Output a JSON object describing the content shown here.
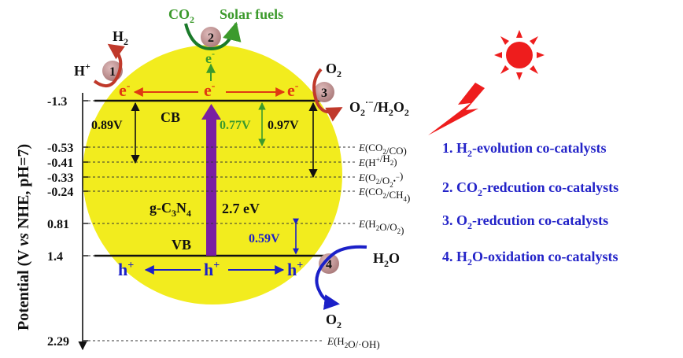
{
  "axis": {
    "label_pre": "Potential (V ",
    "label_vs": "vs",
    "label_post": " NHE, pH=7)",
    "ticks": [
      {
        "value": -1.3,
        "label": "-1.3"
      },
      {
        "value": -0.53,
        "label": "-0.53"
      },
      {
        "value": -0.41,
        "label": "-0.41"
      },
      {
        "value": -0.33,
        "label": "-0.33"
      },
      {
        "value": -0.24,
        "label": "-0.24"
      },
      {
        "value": 0.81,
        "label": "0.81"
      },
      {
        "value": 1.4,
        "label": "1.4"
      },
      {
        "value": 2.29,
        "label": "2.29"
      }
    ]
  },
  "potentials": [
    {
      "couple": "CO2/CO",
      "value": -0.53
    },
    {
      "couple": "H+/H2",
      "value": -0.41
    },
    {
      "couple": "O2/O2•−",
      "value": -0.33
    },
    {
      "couple": "CO2/CH4",
      "value": -0.24
    },
    {
      "couple": "H2O/O2",
      "value": 0.81
    },
    {
      "couple": "H2O/·OH",
      "value": 2.29
    }
  ],
  "labels": {
    "cb": "CB",
    "vb": "VB",
    "bandgap": "2.7 eV",
    "material_g": "g-C",
    "material_3": "3",
    "material_N": "N",
    "material_4": "4",
    "e_minus": "e",
    "h_plus": "h",
    "solar_fuels": "Solar fuels",
    "h2o": "O",
    "o2_text": "O",
    "o2_radical": "O",
    "h2o2": "/H",
    "v089": "0.89V",
    "v077": "0.77V",
    "v097": "0.97V",
    "v059": "0.59V"
  },
  "sites": [
    {
      "num": "1"
    },
    {
      "num": "2"
    },
    {
      "num": "3"
    },
    {
      "num": "4"
    }
  ],
  "legend": [
    {
      "num": "1.",
      "pre": " H",
      "sub": "2",
      "post": "-evolution co-catalysts"
    },
    {
      "num": "2.",
      "pre": " CO",
      "sub": "2",
      "post": "-redcution co-catalysts"
    },
    {
      "num": "3.",
      "pre": " O",
      "sub": "2",
      "post": "-redcution co-catalysts"
    },
    {
      "num": "4.",
      "pre": " H",
      "sub": "2",
      "post": "O-oxidation co-catalysts"
    }
  ],
  "colors": {
    "sphere": "#f2ec1e",
    "bandgap_arrow": "#7a1fa2",
    "electron": "#e03a12",
    "hole": "#1b20c8",
    "green": "#3c9a2c",
    "site_ball": "#c49a9a",
    "sun": "#ee1d1d",
    "legend": "#2323c8"
  }
}
